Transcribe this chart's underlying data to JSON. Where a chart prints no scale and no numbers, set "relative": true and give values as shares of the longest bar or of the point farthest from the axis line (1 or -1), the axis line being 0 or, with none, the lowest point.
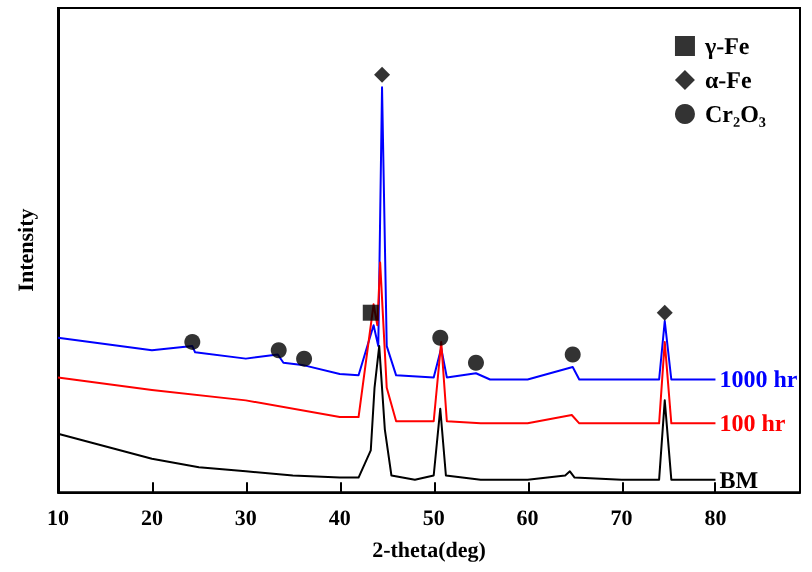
{
  "chart_data": {
    "type": "line",
    "relative": true,
    "xlabel": "2-theta(deg)",
    "ylabel": "Intensity",
    "xlim": [
      10,
      89
    ],
    "xticks": [
      10,
      20,
      30,
      40,
      50,
      60,
      70,
      80
    ],
    "legend": "top right",
    "grid": false,
    "series": [
      {
        "name": "1000 hr",
        "color": "#0000ff",
        "x": [
          10,
          20,
          24.3,
          24.6,
          30,
          33.4,
          34,
          36,
          40,
          42,
          43.6,
          44.1,
          44.5,
          45,
          46,
          50,
          50.8,
          51.4,
          54.5,
          56,
          60,
          64.8,
          65.5,
          70,
          74,
          74.6,
          75.3,
          80
        ],
        "values": [
          0.37,
          0.34,
          0.35,
          0.335,
          0.32,
          0.33,
          0.31,
          0.305,
          0.283,
          0.28,
          0.4,
          0.35,
          0.97,
          0.35,
          0.28,
          0.275,
          0.345,
          0.275,
          0.285,
          0.27,
          0.27,
          0.3,
          0.27,
          0.27,
          0.27,
          0.41,
          0.27,
          0.27
        ]
      },
      {
        "name": "100 hr",
        "color": "#ff0000",
        "x": [
          10,
          20,
          30,
          40,
          42,
          43.6,
          44,
          44.3,
          45,
          46,
          50,
          50.8,
          51.4,
          55,
          60,
          64.7,
          65.5,
          70,
          74,
          74.6,
          75.3,
          80
        ],
        "values": [
          0.275,
          0.245,
          0.22,
          0.18,
          0.18,
          0.45,
          0.4,
          0.55,
          0.25,
          0.17,
          0.17,
          0.36,
          0.17,
          0.165,
          0.165,
          0.185,
          0.165,
          0.165,
          0.165,
          0.36,
          0.165,
          0.165
        ]
      },
      {
        "name": "BM",
        "color": "#000000",
        "x": [
          10,
          15,
          20,
          25,
          30,
          35,
          40,
          42,
          43.3,
          43.7,
          44.2,
          44.8,
          45.5,
          48,
          50,
          50.7,
          51.3,
          55,
          60,
          64,
          64.5,
          65,
          70,
          74,
          74.6,
          75.3,
          80
        ],
        "values": [
          0.14,
          0.11,
          0.08,
          0.06,
          0.05,
          0.04,
          0.035,
          0.035,
          0.1,
          0.25,
          0.35,
          0.15,
          0.04,
          0.03,
          0.04,
          0.2,
          0.04,
          0.03,
          0.03,
          0.04,
          0.05,
          0.035,
          0.03,
          0.03,
          0.22,
          0.03,
          0.03
        ]
      },
      {
        "type": "scatter",
        "name": "γ-Fe",
        "marker": "square",
        "color": "#000000",
        "x": [
          43.3
        ],
        "values": [
          0.43
        ]
      },
      {
        "type": "scatter",
        "name": "α-Fe",
        "marker": "diamond",
        "color": "#000000",
        "x": [
          44.5,
          74.6
        ],
        "values": [
          1,
          0.43
        ]
      },
      {
        "type": "scatter",
        "name": "Cr₂O₃",
        "marker": "circle",
        "color": "#000000",
        "x": [
          24.3,
          33.5,
          36.2,
          50.7,
          54.5,
          64.8
        ],
        "values": [
          0.36,
          0.34,
          0.32,
          0.37,
          0.31,
          0.33
        ]
      }
    ]
  }
}
